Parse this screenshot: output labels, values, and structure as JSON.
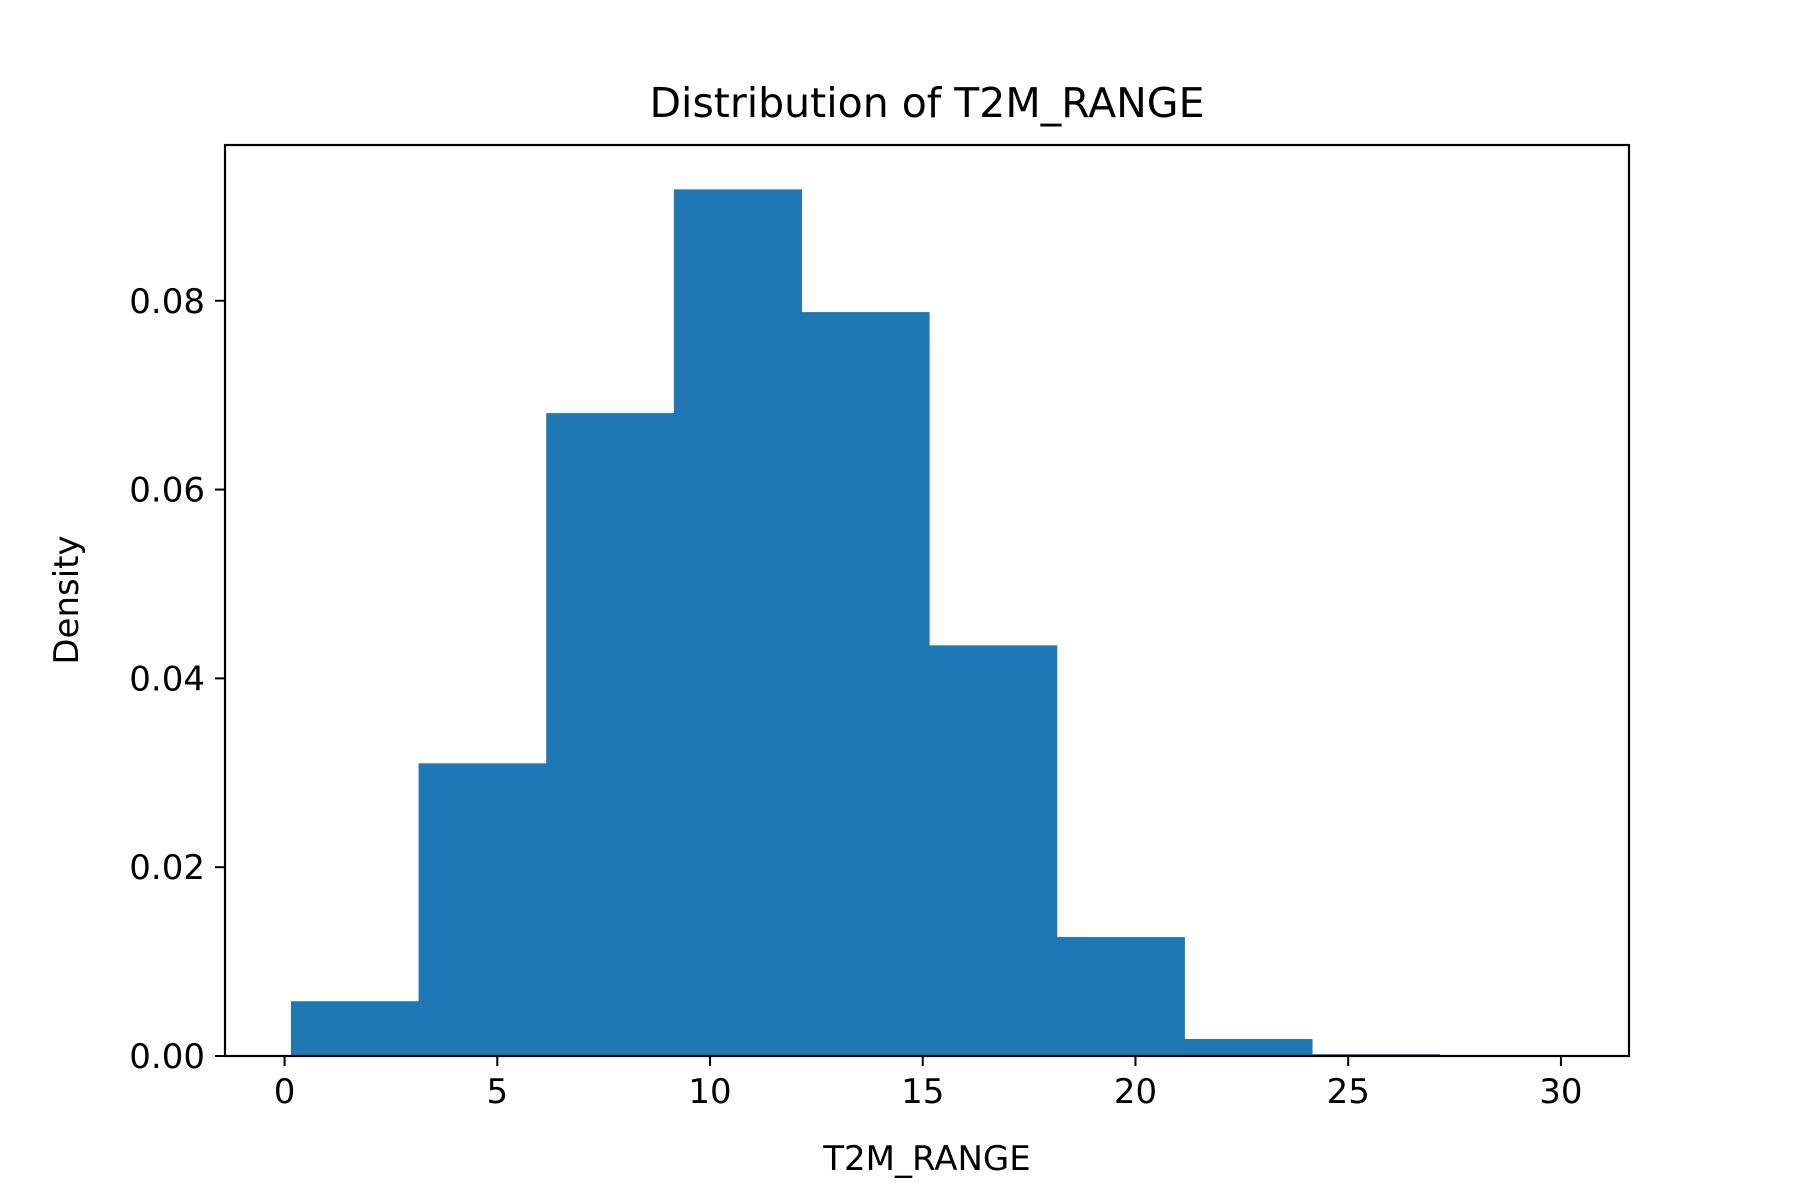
{
  "chart_data": {
    "type": "bar",
    "title": "Distribution of T2M_RANGE",
    "xlabel": "T2M_RANGE",
    "ylabel": "Density",
    "xlim": [
      -1.4,
      31.6
    ],
    "ylim": [
      0,
      0.0965
    ],
    "xticks": [
      0,
      5,
      10,
      15,
      20,
      25,
      30
    ],
    "xtick_labels": [
      "0",
      "5",
      "10",
      "15",
      "20",
      "25",
      "30"
    ],
    "yticks": [
      0,
      0.02,
      0.04,
      0.06,
      0.08
    ],
    "ytick_labels": [
      "0.00",
      "0.02",
      "0.04",
      "0.06",
      "0.08"
    ],
    "bin_edges": [
      0.15,
      3.15,
      6.15,
      9.15,
      12.15,
      15.15,
      18.15,
      21.15,
      24.15,
      27.15,
      30.15
    ],
    "values": [
      0.0058,
      0.031,
      0.0681,
      0.0918,
      0.0788,
      0.0435,
      0.0126,
      0.0018,
      0.0002,
      2e-05
    ],
    "bar_color": "#1f77b4",
    "grid": false,
    "legend": "none"
  }
}
